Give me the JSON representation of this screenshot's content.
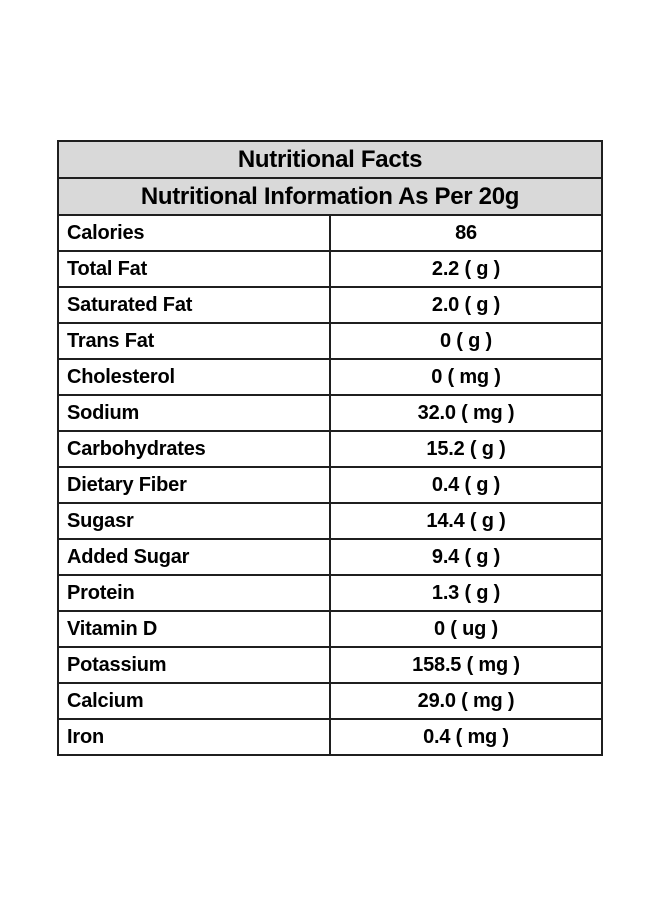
{
  "table": {
    "title": "Nutritional Facts",
    "subtitle": "Nutritional Information As Per 20g",
    "header_bg": "#d9d9d9",
    "border_color": "#1f1f1f",
    "text_color": "#000000",
    "rows": [
      {
        "label": "Calories",
        "value": "86"
      },
      {
        "label": "Total Fat",
        "value": "2.2 ( g )"
      },
      {
        "label": "Saturated Fat",
        "value": "2.0 ( g )"
      },
      {
        "label": "Trans Fat",
        "value": "0 ( g )"
      },
      {
        "label": "Cholesterol",
        "value": "0 ( mg )"
      },
      {
        "label": "Sodium",
        "value": "32.0 ( mg )"
      },
      {
        "label": "Carbohydrates",
        "value": "15.2 ( g )"
      },
      {
        "label": "Dietary Fiber",
        "value": "0.4 ( g )"
      },
      {
        "label": "Sugasr",
        "value": "14.4 ( g )"
      },
      {
        "label": "Added Sugar",
        "value": "9.4 ( g )"
      },
      {
        "label": "Protein",
        "value": "1.3 ( g )"
      },
      {
        "label": "Vitamin D",
        "value": "0 ( ug )"
      },
      {
        "label": "Potassium",
        "value": "158.5 ( mg )"
      },
      {
        "label": "Calcium",
        "value": "29.0 ( mg )"
      },
      {
        "label": "Iron",
        "value": "0.4 ( mg )"
      }
    ]
  }
}
